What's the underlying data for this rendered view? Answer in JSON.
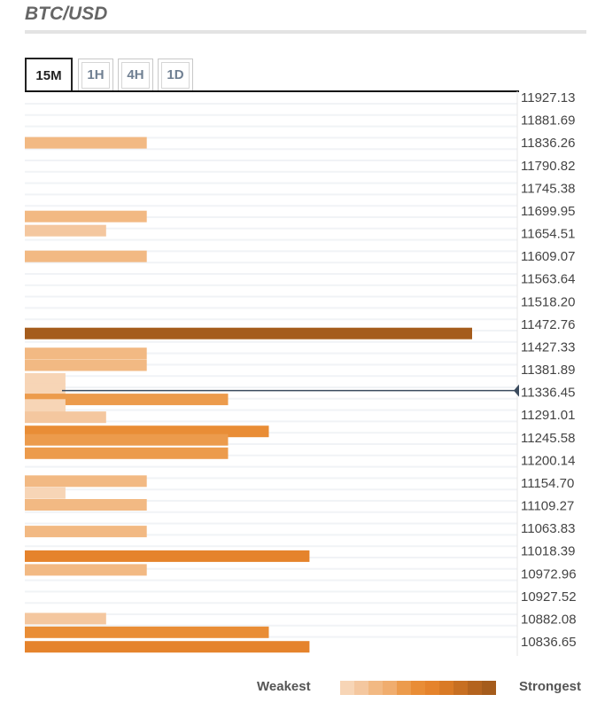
{
  "header": {
    "title": "BTC/USD"
  },
  "tabs": [
    {
      "label": "15M",
      "active": true
    },
    {
      "label": "1H",
      "active": false
    },
    {
      "label": "4H",
      "active": false
    },
    {
      "label": "1D",
      "active": false
    }
  ],
  "chart_data": {
    "type": "bar",
    "orientation": "horizontal",
    "price_levels": [
      "11927.13",
      "11881.69",
      "11836.26",
      "11790.82",
      "11745.38",
      "11699.95",
      "11654.51",
      "11609.07",
      "11563.64",
      "11518.20",
      "11472.76",
      "11427.33",
      "11381.89",
      "11336.45",
      "11291.01",
      "11245.58",
      "11200.14",
      "11154.70",
      "11109.27",
      "11063.83",
      "11018.39",
      "10972.96",
      "10927.52",
      "10882.08",
      "10836.65"
    ],
    "price_range": [
      10836.65,
      11927.13
    ],
    "current_price": 11340,
    "strength_scale_max": 11,
    "bars": [
      {
        "price": 11836.3,
        "strength": 3
      },
      {
        "price": 11688.8,
        "strength": 3
      },
      {
        "price": 11660.3,
        "strength": 2
      },
      {
        "price": 11608.9,
        "strength": 3
      },
      {
        "price": 11454.3,
        "strength": 11
      },
      {
        "price": 11414.4,
        "strength": 3
      },
      {
        "price": 11390.8,
        "strength": 3
      },
      {
        "price": 11363.4,
        "strength": 1
      },
      {
        "price": 11343.3,
        "strength": 1
      },
      {
        "price": 11322.2,
        "strength": 5
      },
      {
        "price": 11311.2,
        "strength": 1
      },
      {
        "price": 11299.4,
        "strength": 1
      },
      {
        "price": 11286.5,
        "strength": 2
      },
      {
        "price": 11258.1,
        "strength": 6
      },
      {
        "price": 11241.2,
        "strength": 5
      },
      {
        "price": 11214.4,
        "strength": 5
      },
      {
        "price": 11158.4,
        "strength": 3
      },
      {
        "price": 11134.7,
        "strength": 1
      },
      {
        "price": 11111.1,
        "strength": 3
      },
      {
        "price": 11057.5,
        "strength": 3
      },
      {
        "price": 11008.3,
        "strength": 7
      },
      {
        "price": 10980.7,
        "strength": 3
      },
      {
        "price": 10883.0,
        "strength": 2
      },
      {
        "price": 10855.6,
        "strength": 6
      },
      {
        "price": 10826.6,
        "strength": 7
      }
    ],
    "strength_colors": [
      "#f7d5b6",
      "#f4c79f",
      "#f2b983",
      "#f0ad6e",
      "#ec9b4c",
      "#e98d36",
      "#e5832c",
      "#d97a26",
      "#c76f22",
      "#b4641f",
      "#a55c1c"
    ]
  },
  "legend": {
    "weakest": "Weakest",
    "strongest": "Strongest"
  }
}
